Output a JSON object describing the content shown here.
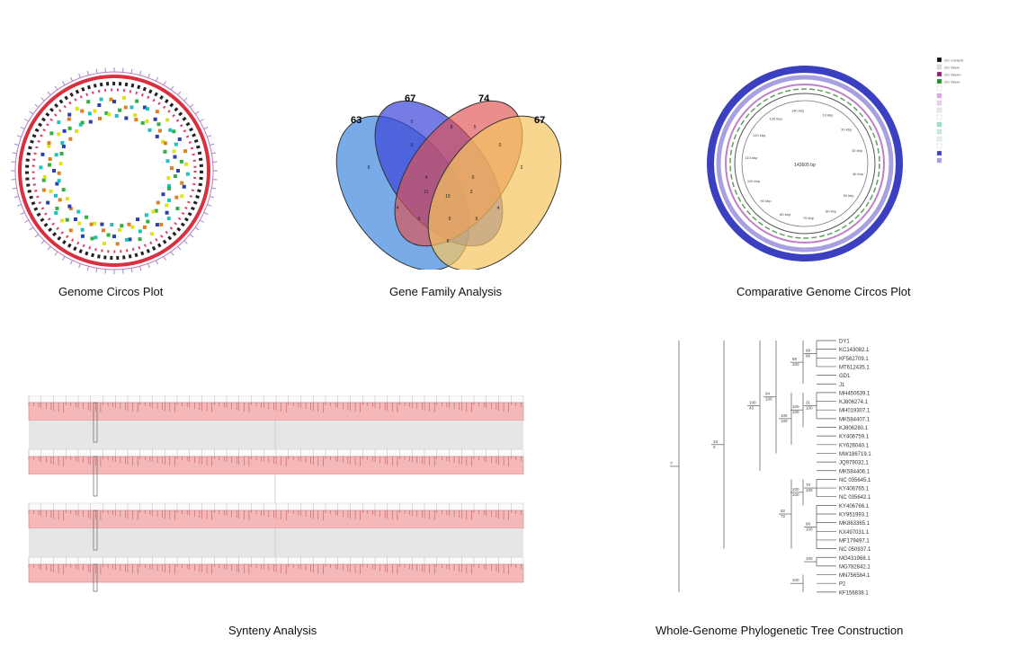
{
  "panels": {
    "circos": {
      "caption": "Genome Circos Plot"
    },
    "venn": {
      "caption": "Gene Family Analysis",
      "set_counts": [
        "63",
        "67",
        "74",
        "67"
      ],
      "regions": [
        "8",
        "0",
        "0",
        "8",
        "5",
        "0",
        "2",
        "4",
        "11",
        "15",
        "3",
        "4",
        "0",
        "5",
        "6",
        "8",
        "4",
        "0"
      ],
      "colors": [
        "#4b8fe0",
        "#3a46d8",
        "#e05050",
        "#f5c45e"
      ]
    },
    "comparative": {
      "caption": "Comparative Genome Circos Plot",
      "center_label": "143605 bp",
      "ring_labels": [
        "10 kbp",
        "20 kbp",
        "30 kbp",
        "40 kbp",
        "50 kbp",
        "60 kbp",
        "70 kbp",
        "80 kbp",
        "90 kbp",
        "100 kbp",
        "110 kbp",
        "120 kbp",
        "130 kbp",
        "140 kbp"
      ],
      "legend": [
        "GC Content",
        "GC Skew",
        "GC Skew+",
        "GC Skew-",
        "",
        "",
        "",
        "",
        "",
        "",
        "",
        "",
        "",
        "",
        ""
      ]
    },
    "synteny": {
      "caption": "Synteny Analysis",
      "track_names": [
        "",
        "",
        "",
        ""
      ]
    },
    "phylo": {
      "caption": "Whole-Genome Phylogenetic Tree Construction",
      "taxa": [
        "DY1",
        "KC143082.1",
        "KF562709.1",
        "MT612435.1",
        "GD1",
        "J1",
        "MH450639.1",
        "KJ806274.1",
        "MH019307.1",
        "MK584407.1",
        "KJ806280.1",
        "KY406759.1",
        "KY626040.1",
        "MW186719.1",
        "JQ979032.1",
        "MK584406.1",
        "NC 035645.1",
        "KY406765.1",
        "NC 035642.1",
        "KY406766.1",
        "KY951993.1",
        "MK863365.1",
        "KX497031.1",
        "MF179497.1",
        "NC 050937.1",
        "MG431968.1",
        "MG782842.1",
        "MN756584.1",
        "P2",
        "KF156838.1"
      ],
      "bootstrap": [
        "99",
        "89",
        "31",
        "100",
        "100",
        "94",
        "100",
        "70",
        "100",
        "99",
        "92",
        "33",
        "100",
        "100",
        "87",
        "96",
        "100",
        "100",
        "100",
        "100",
        "100",
        "43",
        "100",
        "100",
        "100",
        "72",
        "0"
      ]
    }
  }
}
